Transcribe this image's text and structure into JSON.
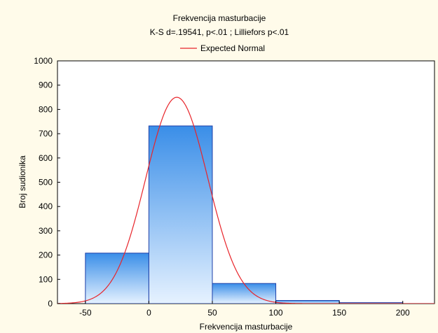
{
  "chart_data": {
    "type": "bar",
    "title": "Frekvencija masturbacije",
    "subtitle": "K-S d=.19541, p<.01 ; Lilliefors p<.01",
    "legend": {
      "entries": [
        "Expected Normal"
      ],
      "placement": "top-center",
      "line_color": "#e8242a"
    },
    "xlabel": "Frekvencija masturbacije",
    "ylabel": "Broj sudionika",
    "xlim": [
      -72,
      225
    ],
    "ylim": [
      0,
      1000
    ],
    "x_ticks": [
      "-50",
      "0",
      "50",
      "100",
      "150",
      "200"
    ],
    "x_tick_values": [
      -50,
      0,
      50,
      100,
      150,
      200
    ],
    "y_ticks": [
      "0",
      "100",
      "200",
      "300",
      "400",
      "500",
      "600",
      "700",
      "800",
      "900",
      "1000"
    ],
    "y_tick_values": [
      0,
      100,
      200,
      300,
      400,
      500,
      600,
      700,
      800,
      900,
      1000
    ],
    "bins": [
      {
        "start": -50,
        "end": 0,
        "value": 208
      },
      {
        "start": 0,
        "end": 50,
        "value": 732
      },
      {
        "start": 50,
        "end": 100,
        "value": 83
      },
      {
        "start": 100,
        "end": 150,
        "value": 13
      },
      {
        "start": 150,
        "end": 200,
        "value": 4
      }
    ],
    "expected_normal": {
      "mean": 22,
      "sd": 24.5,
      "peak": 850
    },
    "colors": {
      "bar_fill_top": "#3a8ee8",
      "bar_fill_bottom": "#e6f2ff",
      "bar_border": "#1c3fa8",
      "curve": "#e8242a",
      "background": "#fffbea",
      "plot_background": "#ffffff"
    }
  }
}
